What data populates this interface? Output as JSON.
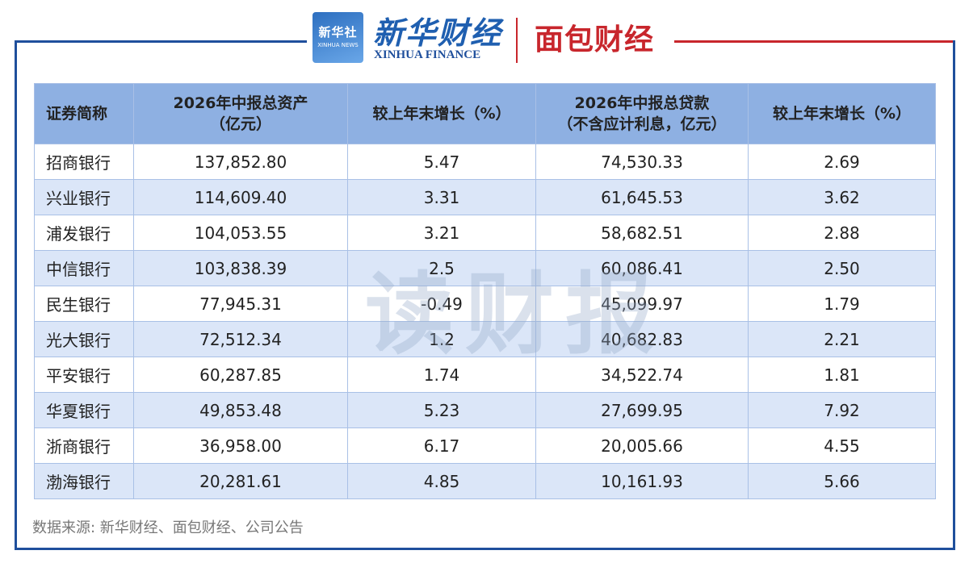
{
  "header": {
    "xinhua_news_cn": "新华社",
    "xinhua_news_en": "XINHUA NEWS",
    "xinhua_finance_cn": "新华财经",
    "xinhua_finance_en": "XINHUA FINANCE",
    "mianbao": "面包财经"
  },
  "table": {
    "header": [
      [
        "证券简称"
      ],
      [
        "2026年中报总资产",
        "（亿元）"
      ],
      [
        "较上年末增长（%）"
      ],
      [
        "2026年中报总贷款",
        "（不含应计利息，亿元）"
      ],
      [
        "较上年末增长（%）"
      ]
    ],
    "rows": [
      [
        "招商银行",
        "137,852.80",
        "5.47",
        "74,530.33",
        "2.69"
      ],
      [
        "兴业银行",
        "114,609.40",
        "3.31",
        "61,645.53",
        "3.62"
      ],
      [
        "浦发银行",
        "104,053.55",
        "3.21",
        "58,682.51",
        "2.88"
      ],
      [
        "中信银行",
        "103,838.39",
        "2.5",
        "60,086.41",
        "2.50"
      ],
      [
        "民生银行",
        "77,945.31",
        "-0.49",
        "45,099.97",
        "1.79"
      ],
      [
        "光大银行",
        "72,512.34",
        "1.2",
        "40,682.83",
        "2.21"
      ],
      [
        "平安银行",
        "60,287.85",
        "1.74",
        "34,522.74",
        "1.81"
      ],
      [
        "华夏银行",
        "49,853.48",
        "5.23",
        "27,699.95",
        "7.92"
      ],
      [
        "浙商银行",
        "36,958.00",
        "6.17",
        "20,005.66",
        "4.55"
      ],
      [
        "渤海银行",
        "20,281.61",
        "4.85",
        "10,161.93",
        "5.66"
      ]
    ]
  },
  "watermark": "读财报",
  "source": "数据来源: 新华财经、面包财经、公司公告"
}
